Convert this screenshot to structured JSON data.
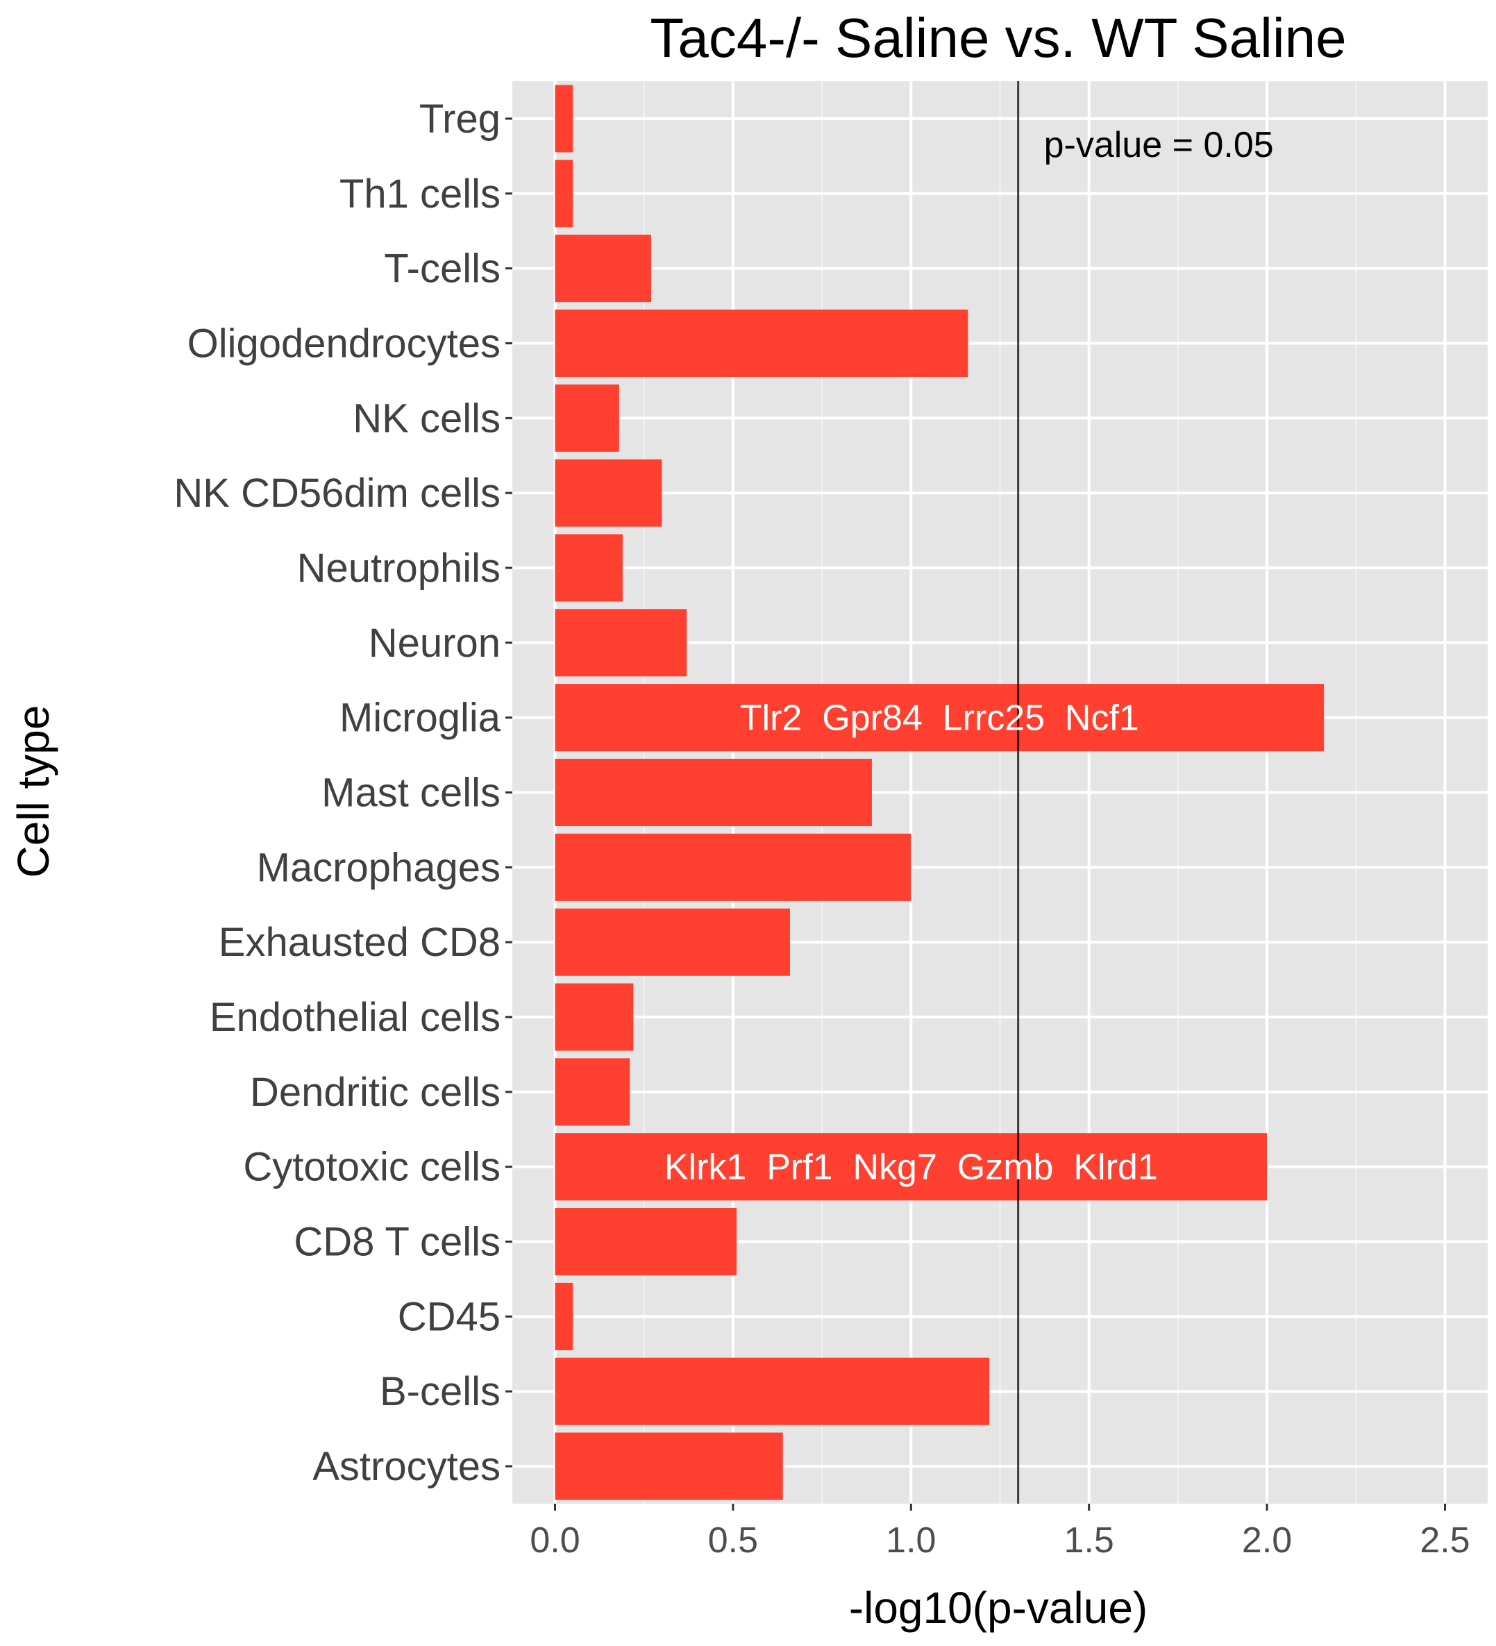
{
  "chart_data": {
    "type": "bar",
    "orientation": "horizontal",
    "title": "Tac4-/- Saline vs. WT Saline",
    "xlabel": "-log10(p-value)",
    "ylabel": "Cell type",
    "xlim": [
      -0.12,
      2.62
    ],
    "xticks": [
      0.0,
      0.5,
      1.0,
      1.5,
      2.0,
      2.5
    ],
    "xtick_labels": [
      "0.0",
      "0.5",
      "1.0",
      "1.5",
      "2.0",
      "2.5"
    ],
    "grid": true,
    "bar_color": "#ff4030",
    "background_color": "#e5e5e5",
    "threshold": {
      "x": 1.301,
      "label": "p-value = 0.05",
      "color": "#000000"
    },
    "categories": [
      "Treg",
      "Th1 cells",
      "T-cells",
      "Oligodendrocytes",
      "NK cells",
      "NK CD56dim cells",
      "Neutrophils",
      "Neuron",
      "Microglia",
      "Mast cells",
      "Macrophages",
      "Exhausted CD8",
      "Endothelial cells",
      "Dendritic cells",
      "Cytotoxic cells",
      "CD8 T cells",
      "CD45",
      "B-cells",
      "Astrocytes"
    ],
    "values": [
      0.05,
      0.05,
      0.27,
      1.16,
      0.18,
      0.3,
      0.19,
      0.37,
      2.16,
      0.89,
      1.0,
      0.66,
      0.22,
      0.21,
      2.0,
      0.51,
      0.05,
      1.22,
      0.64
    ],
    "bar_annotations": [
      {
        "category": "Microglia",
        "genes": [
          "Tlr2",
          "Gpr84",
          "Lrrc25",
          "Ncf1"
        ]
      },
      {
        "category": "Cytotoxic cells",
        "genes": [
          "Klrk1",
          "Prf1",
          "Nkg7",
          "Gzmb",
          "Klrd1"
        ]
      }
    ]
  }
}
